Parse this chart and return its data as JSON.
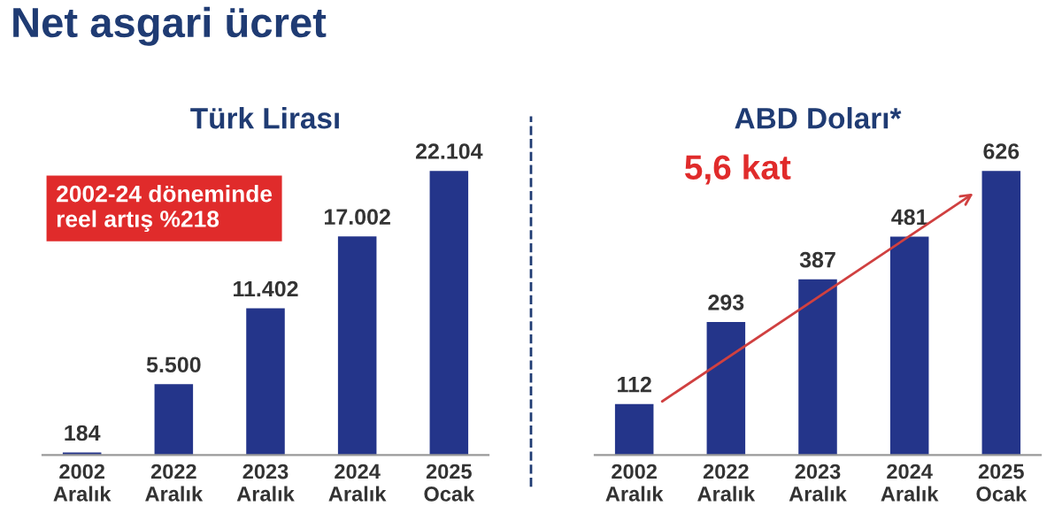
{
  "chart_data": [
    {
      "type": "bar",
      "title": "Türk Lirası",
      "categories": [
        "2002\nAralık",
        "2022\nAralık",
        "2023\nAralık",
        "2024\nAralık",
        "2025\nOcak"
      ],
      "values": [
        184,
        5500,
        11402,
        17002,
        22104
      ],
      "value_labels": [
        "184",
        "5.500",
        "11.402",
        "17.002",
        "22.104"
      ],
      "color": "#24358a",
      "annotations": [
        "Net asgari ücret",
        "2002-24 döneminde\nreel artış %218"
      ]
    },
    {
      "type": "bar",
      "title": "ABD Doları*",
      "categories": [
        "2002\nAralık",
        "2022\nAralık",
        "2023\nAralık",
        "2024\nAralık",
        "2025\nOcak"
      ],
      "values": [
        112,
        293,
        387,
        481,
        626
      ],
      "data_labels": true,
      "color": "#24358a",
      "annotations": [
        "5,6 kat"
      ]
    }
  ]
}
